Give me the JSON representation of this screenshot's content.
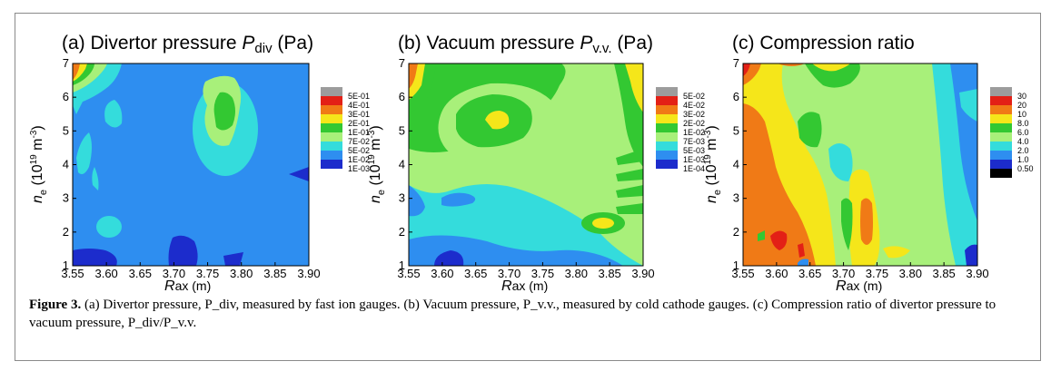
{
  "figure": {
    "caption_label": "Figure 3.",
    "caption_text": " (a) Divertor pressure, P_div, measured by fast ion gauges. (b) Vacuum pressure, P_v.v., measured by cold cathode gauges. (c) Compression ratio of divertor pressure to vacuum pressure, P_div/P_v.v."
  },
  "chart_data": [
    {
      "type": "heatmap",
      "title": "(a) Divertor pressure P_div (Pa)",
      "xlabel": "Rax (m)",
      "ylabel": "n_e (10^19 m^-3)",
      "xlim": [
        3.55,
        3.9
      ],
      "ylim": [
        1,
        7
      ],
      "x_ticks": [
        "3.55",
        "3.60",
        "3.65",
        "3.70",
        "3.75",
        "3.80",
        "3.85",
        "3.90"
      ],
      "y_ticks": [
        "1",
        "2",
        "3",
        "4",
        "5",
        "6",
        "7"
      ],
      "colorbar": {
        "levels": [
          "5E-01",
          "4E-01",
          "3E-01",
          "2E-01",
          "1E-01",
          "7E-02",
          "5E-02",
          "1E-02",
          "1E-03"
        ],
        "colors": [
          "#9c9c9c",
          "#e32016",
          "#f07a16",
          "#f5e61a",
          "#33c832",
          "#a8f07a",
          "#34dcdc",
          "#2e8ef0",
          "#1c2ccc"
        ]
      }
    },
    {
      "type": "heatmap",
      "title": "(b) Vacuum pressure P_v.v. (Pa)",
      "xlabel": "Rax (m)",
      "ylabel": "n_e (10^19 m^-3)",
      "xlim": [
        3.55,
        3.9
      ],
      "ylim": [
        1,
        7
      ],
      "x_ticks": [
        "3.55",
        "3.60",
        "3.65",
        "3.70",
        "3.75",
        "3.80",
        "3.85",
        "3.90"
      ],
      "y_ticks": [
        "1",
        "2",
        "3",
        "4",
        "5",
        "6",
        "7"
      ],
      "colorbar": {
        "levels": [
          "5E-02",
          "4E-02",
          "3E-02",
          "2E-02",
          "1E-02",
          "7E-03",
          "5E-03",
          "1E-03",
          "1E-04"
        ],
        "colors": [
          "#9c9c9c",
          "#e32016",
          "#f07a16",
          "#f5e61a",
          "#33c832",
          "#a8f07a",
          "#34dcdc",
          "#2e8ef0",
          "#1c2ccc"
        ]
      }
    },
    {
      "type": "heatmap",
      "title": "(c) Compression ratio",
      "xlabel": "Rax (m)",
      "ylabel": "n_e (10^19 m^-3)",
      "xlim": [
        3.55,
        3.9
      ],
      "ylim": [
        1,
        7
      ],
      "x_ticks": [
        "3.55",
        "3.60",
        "3.65",
        "3.70",
        "3.75",
        "3.80",
        "3.85",
        "3.90"
      ],
      "y_ticks": [
        "1",
        "2",
        "3",
        "4",
        "5",
        "6",
        "7"
      ],
      "colorbar": {
        "levels": [
          "30",
          "20",
          "10",
          "8.0",
          "6.0",
          "4.0",
          "2.0",
          "1.0",
          "0.50"
        ],
        "colors": [
          "#9c9c9c",
          "#e32016",
          "#f07a16",
          "#f5e61a",
          "#33c832",
          "#a8f07a",
          "#34dcdc",
          "#2e8ef0",
          "#1c2ccc",
          "#000000"
        ]
      }
    }
  ]
}
